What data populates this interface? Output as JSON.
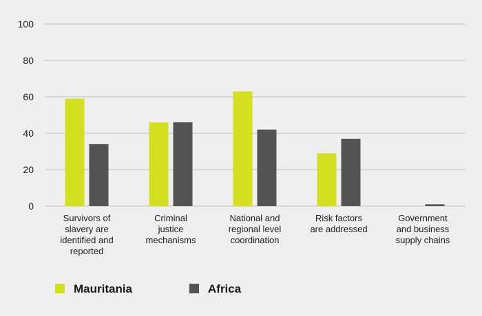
{
  "chart_data": {
    "type": "bar",
    "categories": [
      [
        "Survivors of",
        "slavery are",
        "identified and",
        "reported"
      ],
      [
        "Criminal",
        "justice",
        "mechanisms"
      ],
      [
        "National and",
        "regional level",
        "coordination"
      ],
      [
        "Risk factors",
        "are addressed"
      ],
      [
        "Government",
        "and business",
        "supply chains"
      ]
    ],
    "series": [
      {
        "name": "Mauritania",
        "color": "#d4df1f",
        "values": [
          59,
          46,
          63,
          29,
          0
        ]
      },
      {
        "name": "Africa",
        "color": "#535353",
        "values": [
          34,
          46,
          42,
          37,
          1
        ]
      }
    ],
    "ylim": [
      0,
      100
    ],
    "yticks": [
      0,
      20,
      40,
      60,
      80,
      100
    ],
    "grid": true,
    "legend_position": "bottom-left",
    "background": "#efefef",
    "gridline_color": "#bdbdbd"
  }
}
